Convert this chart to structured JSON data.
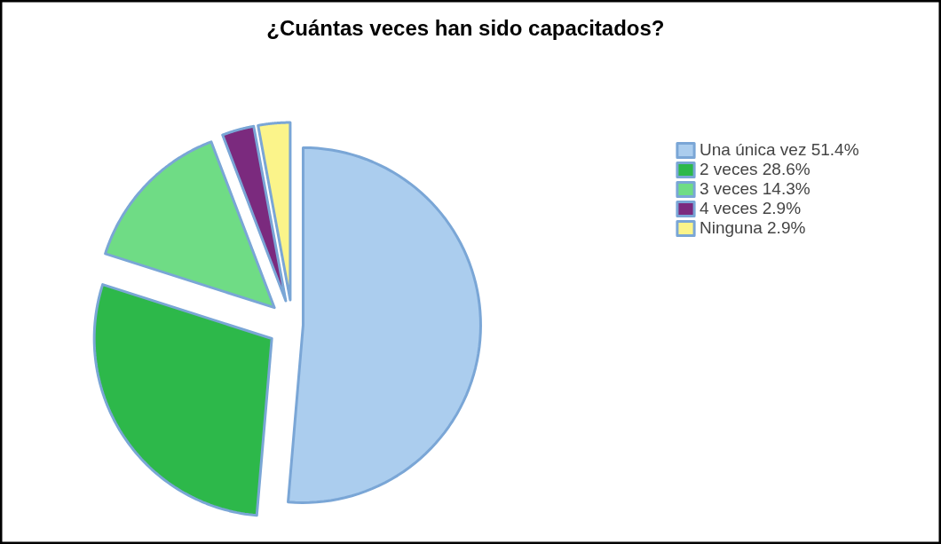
{
  "chart_data": {
    "type": "pie",
    "title": "¿Cuántas veces han sido capacitados?",
    "categories": [
      "Una única vez 51.4%",
      "2 veces 28.6%",
      "3 veces 14.3%",
      "4 veces 2.9%",
      "Ninguna 2.9%"
    ],
    "values": [
      51.4,
      28.6,
      14.3,
      2.9,
      2.9
    ],
    "colors": [
      "#abcdee",
      "#2db84a",
      "#6fdc85",
      "#7b2a7e",
      "#fbf48a"
    ],
    "legend": "right"
  }
}
